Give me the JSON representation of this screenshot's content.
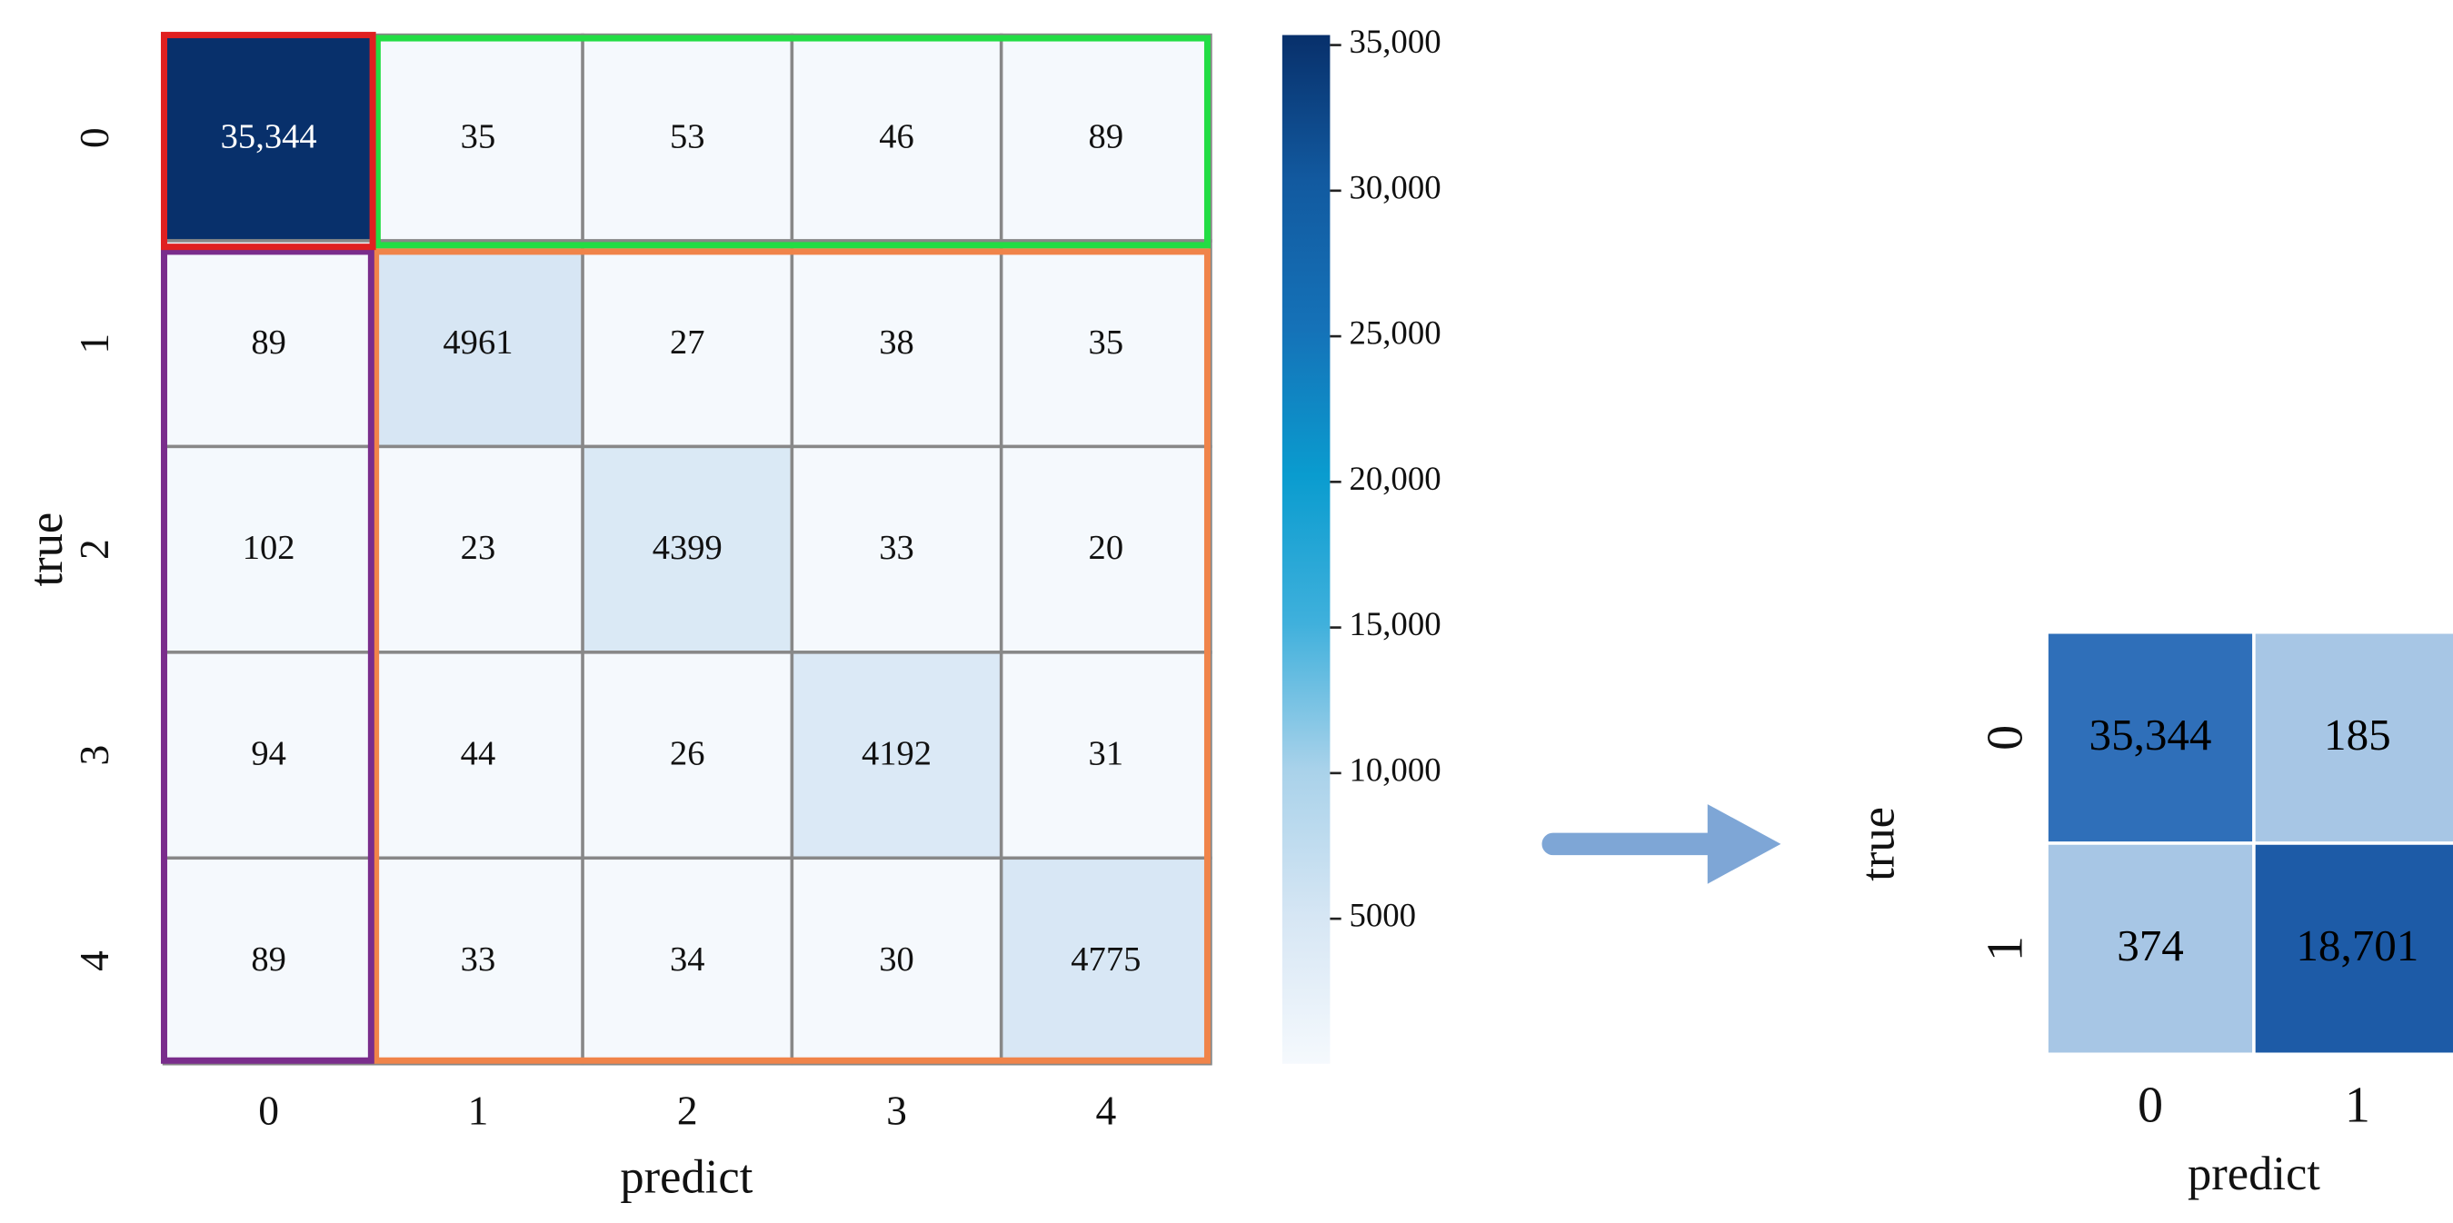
{
  "chart_data": [
    {
      "type": "heatmap",
      "x_label": "predict",
      "y_label": "true",
      "x_categories": [
        "0",
        "1",
        "2",
        "3",
        "4"
      ],
      "y_categories": [
        "0",
        "1",
        "2",
        "3",
        "4"
      ],
      "values": [
        [
          35344,
          35,
          53,
          46,
          89
        ],
        [
          89,
          4961,
          27,
          38,
          35
        ],
        [
          102,
          23,
          4399,
          33,
          20
        ],
        [
          94,
          44,
          26,
          4192,
          31
        ],
        [
          89,
          33,
          34,
          30,
          4775
        ]
      ],
      "value_labels": [
        [
          "35,344",
          "35",
          "53",
          "46",
          "89"
        ],
        [
          "89",
          "4961",
          "27",
          "38",
          "35"
        ],
        [
          "102",
          "23",
          "4399",
          "33",
          "20"
        ],
        [
          "94",
          "44",
          "26",
          "4192",
          "31"
        ],
        [
          "89",
          "33",
          "34",
          "30",
          "4775"
        ]
      ],
      "clim": [
        20,
        35344
      ],
      "colormap": [
        "#f5f9fd",
        "#d6e6f4",
        "#a9d2ea",
        "#3fb0dc",
        "#0a9ccf",
        "#1572b8",
        "#125aa0",
        "#08306b"
      ],
      "colorbar_ticks": [
        {
          "value": 35000,
          "label": "35,000"
        },
        {
          "value": 30000,
          "label": "30,000"
        },
        {
          "value": 25000,
          "label": "25,000"
        },
        {
          "value": 20000,
          "label": "20,000"
        },
        {
          "value": 15000,
          "label": "15,000"
        },
        {
          "value": 10000,
          "label": "10,000"
        },
        5000
      ]
    },
    {
      "type": "heatmap",
      "x_label": "predict",
      "y_label": "true",
      "x_categories": [
        "0",
        "1"
      ],
      "y_categories": [
        "0",
        "1"
      ],
      "values": [
        [
          35344,
          185
        ],
        [
          374,
          18701
        ]
      ],
      "value_labels": [
        [
          "35,344",
          "185"
        ],
        [
          "374",
          "18,701"
        ]
      ],
      "colors": [
        [
          "#2f6fb9",
          "#a7c6e5"
        ],
        [
          "#a7c6e5",
          "#1d5ba7"
        ]
      ],
      "annot_color": "#000000"
    }
  ]
}
